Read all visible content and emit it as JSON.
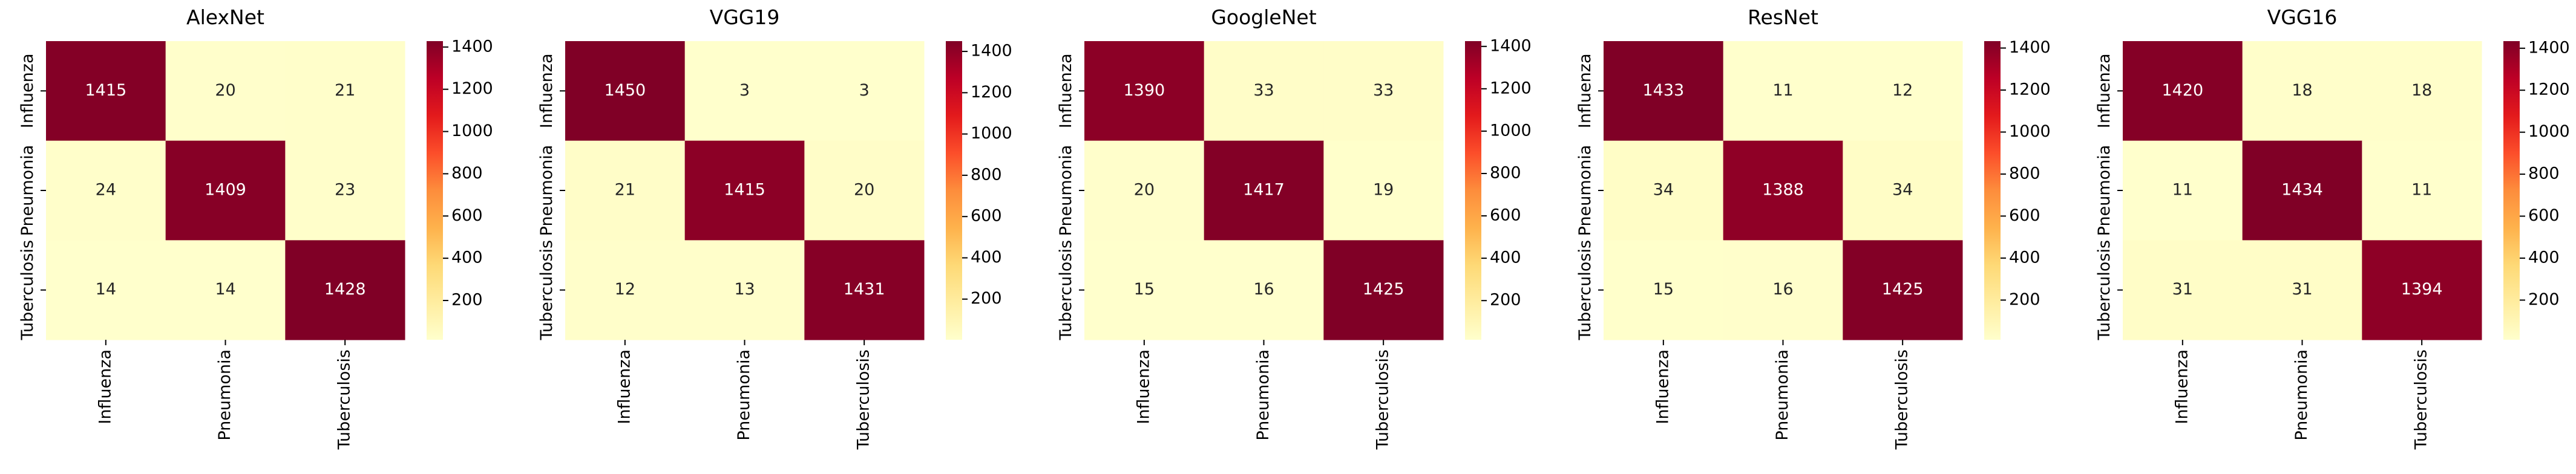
{
  "chart_data": [
    {
      "type": "heatmap",
      "title": "AlexNet",
      "x_categories": [
        "Influenza",
        "Pneumonia",
        "Tuberculosis"
      ],
      "y_categories": [
        "Influenza",
        "Pneumonia",
        "Tuberculosis"
      ],
      "values": [
        [
          1415,
          20,
          21
        ],
        [
          24,
          1409,
          23
        ],
        [
          14,
          14,
          1428
        ]
      ],
      "colormap": "YlOrRd",
      "clim": [
        14,
        1428
      ],
      "cticks": [
        200,
        400,
        600,
        800,
        1000,
        1200,
        1400
      ]
    },
    {
      "type": "heatmap",
      "title": "VGG19",
      "x_categories": [
        "Influenza",
        "Pneumonia",
        "Tuberculosis"
      ],
      "y_categories": [
        "Influenza",
        "Pneumonia",
        "Tuberculosis"
      ],
      "values": [
        [
          1450,
          3,
          3
        ],
        [
          21,
          1415,
          20
        ],
        [
          12,
          13,
          1431
        ]
      ],
      "colormap": "YlOrRd",
      "clim": [
        3,
        1450
      ],
      "cticks": [
        200,
        400,
        600,
        800,
        1000,
        1200,
        1400
      ]
    },
    {
      "type": "heatmap",
      "title": "GoogleNet",
      "x_categories": [
        "Influenza",
        "Pneumonia",
        "Tuberculosis"
      ],
      "y_categories": [
        "Influenza",
        "Pneumonia",
        "Tuberculosis"
      ],
      "values": [
        [
          1390,
          33,
          33
        ],
        [
          20,
          1417,
          19
        ],
        [
          15,
          16,
          1425
        ]
      ],
      "colormap": "YlOrRd",
      "clim": [
        15,
        1425
      ],
      "cticks": [
        200,
        400,
        600,
        800,
        1000,
        1200,
        1400
      ]
    },
    {
      "type": "heatmap",
      "title": "ResNet",
      "x_categories": [
        "Influenza",
        "Pneumonia",
        "Tuberculosis"
      ],
      "y_categories": [
        "Influenza",
        "Pneumonia",
        "Tuberculosis"
      ],
      "values": [
        [
          1433,
          11,
          12
        ],
        [
          34,
          1388,
          34
        ],
        [
          15,
          16,
          1425
        ]
      ],
      "colormap": "YlOrRd",
      "clim": [
        11,
        1433
      ],
      "cticks": [
        200,
        400,
        600,
        800,
        1000,
        1200,
        1400
      ]
    },
    {
      "type": "heatmap",
      "title": "VGG16",
      "x_categories": [
        "Influenza",
        "Pneumonia",
        "Tuberculosis"
      ],
      "y_categories": [
        "Influenza",
        "Pneumonia",
        "Tuberculosis"
      ],
      "values": [
        [
          1420,
          18,
          18
        ],
        [
          11,
          1434,
          11
        ],
        [
          31,
          31,
          1394
        ]
      ],
      "colormap": "YlOrRd",
      "clim": [
        11,
        1434
      ],
      "cticks": [
        200,
        400,
        600,
        800,
        1000,
        1200,
        1400
      ]
    }
  ]
}
